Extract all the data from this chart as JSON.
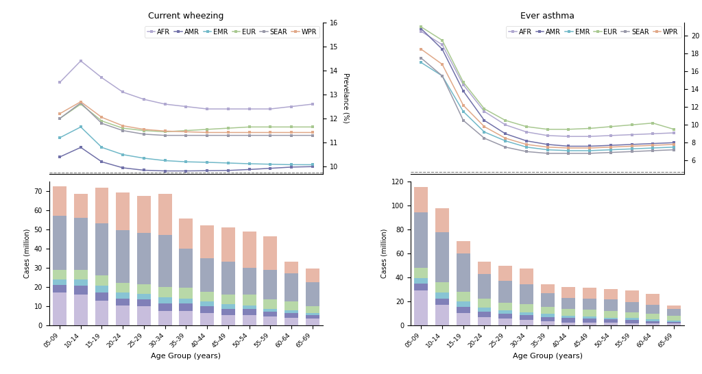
{
  "age_groups": [
    "05-09",
    "10-14",
    "15-19",
    "20-24",
    "25-29",
    "30-34",
    "35-39",
    "40-44",
    "45-49",
    "50-54",
    "55-59",
    "60-64",
    "65-69"
  ],
  "regions": [
    "AFR",
    "AMR",
    "EMR",
    "EUR",
    "SEAR",
    "WPR"
  ],
  "bar_colors": {
    "AFR": "#c8bedd",
    "AMR": "#8080b8",
    "EMR": "#88c4d4",
    "EUR": "#b8d8a8",
    "SEAR": "#a0a8bc",
    "WPR": "#e8b8a8"
  },
  "line_colors": {
    "AFR": "#b0a8d0",
    "AMR": "#7070a8",
    "EMR": "#70b8c8",
    "EUR": "#a8c890",
    "SEAR": "#9898a8",
    "WPR": "#e0a888"
  },
  "cw_prevalence": {
    "AFR": [
      13.5,
      14.4,
      13.7,
      13.1,
      12.8,
      12.6,
      12.5,
      12.4,
      12.4,
      12.4,
      12.4,
      12.5,
      12.6
    ],
    "AMR": [
      10.4,
      10.8,
      10.2,
      9.95,
      9.85,
      9.82,
      9.82,
      9.83,
      9.84,
      9.88,
      9.93,
      9.98,
      10.0
    ],
    "EMR": [
      11.2,
      11.65,
      10.8,
      10.5,
      10.35,
      10.25,
      10.2,
      10.18,
      10.15,
      10.12,
      10.1,
      10.08,
      10.08
    ],
    "EUR": [
      12.0,
      12.6,
      11.9,
      11.6,
      11.5,
      11.45,
      11.5,
      11.55,
      11.6,
      11.65,
      11.65,
      11.65,
      11.65
    ],
    "SEAR": [
      12.0,
      12.65,
      11.8,
      11.5,
      11.35,
      11.3,
      11.3,
      11.3,
      11.3,
      11.3,
      11.3,
      11.3,
      11.3
    ],
    "WPR": [
      12.2,
      12.7,
      12.05,
      11.7,
      11.55,
      11.48,
      11.45,
      11.42,
      11.42,
      11.42,
      11.42,
      11.42,
      11.42
    ]
  },
  "cw_cases": {
    "AFR": [
      17.0,
      16.0,
      13.0,
      10.5,
      10.0,
      7.5,
      7.5,
      6.5,
      5.5,
      5.5,
      4.5,
      4.0,
      3.5
    ],
    "AMR": [
      4.0,
      4.5,
      4.0,
      3.5,
      3.5,
      4.0,
      4.0,
      3.5,
      3.0,
      3.0,
      2.5,
      2.5,
      2.0
    ],
    "EMR": [
      3.0,
      3.5,
      3.5,
      3.0,
      3.0,
      3.0,
      2.5,
      2.5,
      2.5,
      2.0,
      1.5,
      1.5,
      1.0
    ],
    "EUR": [
      5.0,
      5.0,
      5.5,
      5.0,
      5.0,
      5.5,
      5.5,
      5.0,
      5.0,
      5.5,
      5.0,
      4.5,
      3.5
    ],
    "SEAR": [
      28.0,
      27.0,
      27.0,
      27.5,
      26.5,
      27.0,
      20.5,
      17.5,
      17.0,
      14.0,
      15.5,
      14.5,
      12.5
    ],
    "WPR": [
      15.5,
      12.5,
      18.5,
      19.5,
      19.5,
      21.5,
      15.5,
      17.0,
      18.0,
      19.0,
      17.5,
      6.0,
      7.0
    ]
  },
  "ea_prevalence": {
    "AFR": [
      20.5,
      19.0,
      14.5,
      11.5,
      10.0,
      9.2,
      8.8,
      8.7,
      8.7,
      8.8,
      8.9,
      9.0,
      9.1
    ],
    "AMR": [
      20.8,
      18.5,
      13.8,
      10.5,
      9.0,
      8.2,
      7.8,
      7.6,
      7.6,
      7.7,
      7.8,
      7.9,
      8.0
    ],
    "EMR": [
      17.0,
      15.5,
      11.5,
      9.2,
      8.2,
      7.5,
      7.2,
      7.1,
      7.1,
      7.2,
      7.3,
      7.4,
      7.5
    ],
    "EUR": [
      21.0,
      19.5,
      14.8,
      11.8,
      10.5,
      9.8,
      9.5,
      9.5,
      9.6,
      9.8,
      10.0,
      10.2,
      9.5
    ],
    "SEAR": [
      17.5,
      15.5,
      10.5,
      8.5,
      7.5,
      7.0,
      6.8,
      6.8,
      6.8,
      6.9,
      7.0,
      7.1,
      7.2
    ],
    "WPR": [
      18.5,
      16.8,
      12.2,
      9.8,
      8.5,
      7.8,
      7.5,
      7.4,
      7.4,
      7.5,
      7.6,
      7.7,
      7.8
    ]
  },
  "ea_cases": {
    "AFR": [
      29.0,
      17.0,
      10.5,
      7.0,
      5.5,
      4.5,
      3.5,
      2.5,
      2.5,
      2.5,
      2.0,
      1.5,
      1.5
    ],
    "AMR": [
      6.0,
      5.5,
      5.0,
      4.5,
      4.0,
      4.0,
      3.5,
      3.5,
      3.0,
      2.5,
      2.5,
      2.0,
      1.5
    ],
    "EMR": [
      4.5,
      5.0,
      4.5,
      3.5,
      3.0,
      2.5,
      2.5,
      2.0,
      2.0,
      1.5,
      1.5,
      1.5,
      1.0
    ],
    "EUR": [
      8.5,
      8.5,
      8.0,
      7.0,
      6.5,
      6.5,
      6.0,
      5.5,
      5.5,
      5.5,
      5.0,
      4.5,
      4.0
    ],
    "SEAR": [
      46.0,
      41.5,
      32.0,
      21.0,
      18.0,
      16.5,
      11.5,
      9.5,
      9.5,
      9.5,
      8.5,
      7.5,
      5.5
    ],
    "WPR": [
      21.0,
      20.0,
      10.0,
      10.0,
      12.5,
      13.5,
      7.5,
      9.0,
      9.0,
      9.0,
      9.5,
      9.5,
      3.0
    ]
  },
  "cw_ylim": [
    9.7,
    16.0
  ],
  "ea_ylim": [
    4.5,
    21.5
  ],
  "cw_bar_ylim": [
    0,
    75
  ],
  "ea_bar_ylim": [
    0,
    120
  ],
  "dashed_line_cw": 9.75,
  "dashed_line_ea": 4.7,
  "title_cw": "Current wheezing",
  "title_ea": "Ever asthma",
  "xlabel": "Age Group (years)",
  "ylabel_prevalence": "Prevelance (%)",
  "ylabel_cases": "Cases (million)"
}
